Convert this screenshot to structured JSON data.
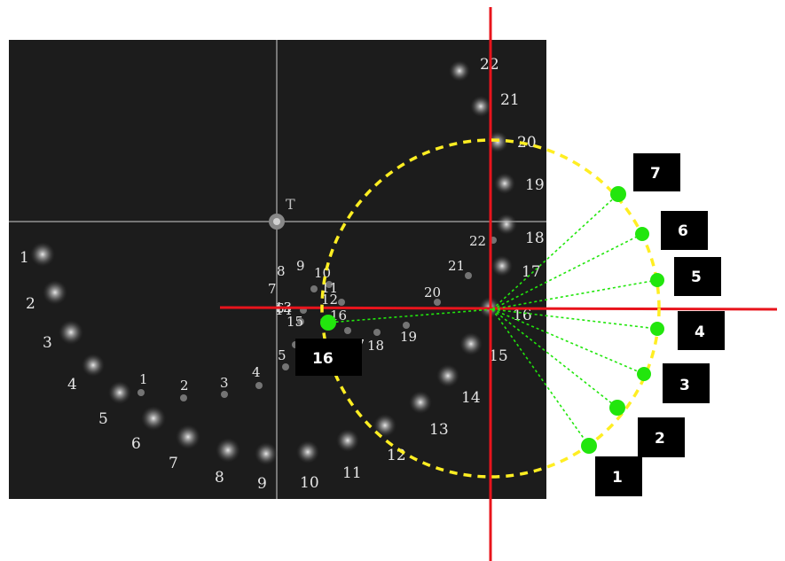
{
  "photo": {
    "target_marker": "T",
    "left_spiral_labels": [
      "1",
      "2",
      "3",
      "4",
      "5",
      "6",
      "7",
      "8",
      "9",
      "10",
      "11",
      "12",
      "13",
      "14",
      "15",
      "16",
      "17",
      "18",
      "19",
      "20",
      "21",
      "22"
    ],
    "right_spiral_labels": [
      "22",
      "21",
      "20",
      "19",
      "18",
      "17",
      "16",
      "15",
      "14",
      "13",
      "12",
      "11",
      "10",
      "9",
      "8",
      "7",
      "6",
      "5",
      "4",
      "3",
      "2",
      "1"
    ]
  },
  "diagram": {
    "center_label": "16",
    "point_labels": [
      "1",
      "2",
      "3",
      "4",
      "5",
      "6",
      "7"
    ],
    "colors": {
      "axis": "#e8141c",
      "circle": "#ffee22",
      "point": "#22e60d",
      "spoke": "#22e60d",
      "label_box": "#000000",
      "photo_bg": "#1c1c1c"
    }
  }
}
